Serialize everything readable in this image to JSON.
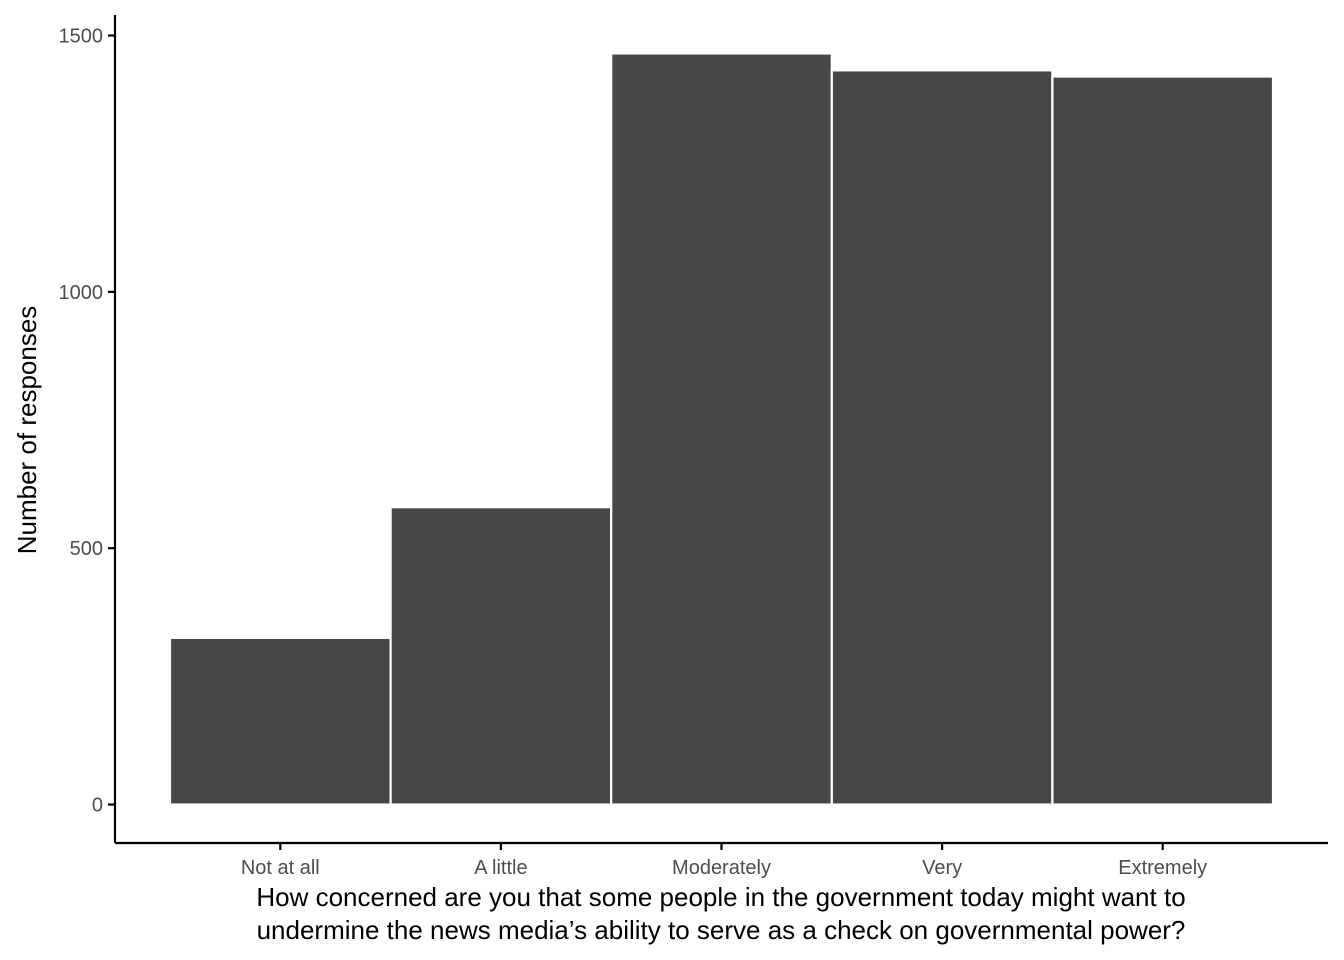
{
  "chart_data": {
    "type": "bar",
    "categories": [
      "Not at all",
      "A little",
      "Moderately",
      "Very",
      "Extremely"
    ],
    "values": [
      325,
      580,
      1465,
      1432,
      1420
    ],
    "xlabel": [
      "How concerned are you that some people in the government today might want to",
      "undermine the news media’s ability to serve as a check on governmental power?"
    ],
    "ylabel": "Number of responses",
    "ylim": [
      -75,
      1540
    ],
    "yticks": [
      0,
      500,
      1000,
      1500
    ],
    "ytick_labels": [
      "0",
      "500",
      "1000",
      "1500"
    ],
    "grid": false,
    "legend": "none",
    "colors": {
      "bar_fill": "#474747",
      "bar_stroke": "#ffffff",
      "axis": "#000000",
      "tick_text": "#4d4d4d"
    }
  }
}
